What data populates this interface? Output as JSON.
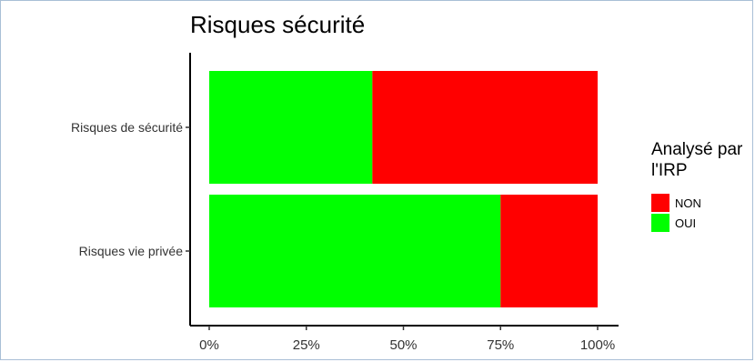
{
  "chart_data": {
    "type": "bar",
    "orientation": "horizontal",
    "stacked": true,
    "title": "Risques sécurité",
    "categories": [
      "Risques de sécurité",
      "Risques vie privée"
    ],
    "series": [
      {
        "name": "OUI",
        "values": [
          42,
          75
        ],
        "color": "#00ff00"
      },
      {
        "name": "NON",
        "values": [
          58,
          25
        ],
        "color": "#ff0000"
      }
    ],
    "xticks": [
      "0%",
      "25%",
      "50%",
      "75%",
      "100%"
    ],
    "xlim": [
      0,
      100
    ],
    "grid": false,
    "legend": {
      "title": "Analysé par l'IRP",
      "placement": "right",
      "entries": [
        {
          "label": "NON",
          "color": "#ff0000"
        },
        {
          "label": "OUI",
          "color": "#00ff00"
        }
      ]
    }
  }
}
